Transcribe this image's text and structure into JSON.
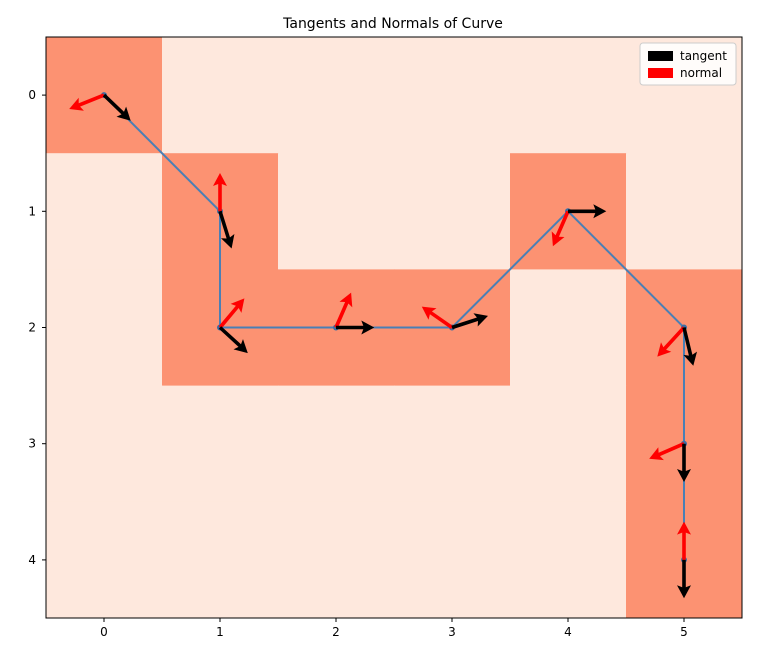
{
  "chart_data": {
    "type": "heatmap",
    "title": "Tangents and Normals of Curve",
    "xlabel": "",
    "ylabel": "",
    "x_ticks": [
      "0",
      "1",
      "2",
      "3",
      "4",
      "5"
    ],
    "y_ticks": [
      "0",
      "1",
      "2",
      "3",
      "4"
    ],
    "xlim": [
      -0.5,
      5.5
    ],
    "ylim": [
      4.5,
      -0.5
    ],
    "grid": false,
    "colors": {
      "on": "#fc9272",
      "off": "#fee8dd",
      "curve": "#4a7fb5",
      "point": "#3a6ea5",
      "tangent": "#000000",
      "normal": "#ff0000"
    },
    "grid_values": [
      [
        1,
        0,
        0,
        0,
        0,
        0
      ],
      [
        0,
        1,
        0,
        0,
        1,
        0
      ],
      [
        0,
        1,
        1,
        1,
        0,
        1
      ],
      [
        0,
        0,
        0,
        0,
        0,
        1
      ],
      [
        0,
        0,
        0,
        0,
        0,
        1
      ]
    ],
    "curve": [
      {
        "x": 0,
        "y": 0
      },
      {
        "x": 1,
        "y": 1
      },
      {
        "x": 1,
        "y": 2
      },
      {
        "x": 2,
        "y": 2
      },
      {
        "x": 3,
        "y": 2
      },
      {
        "x": 4,
        "y": 1
      },
      {
        "x": 5,
        "y": 2
      },
      {
        "x": 5,
        "y": 3
      },
      {
        "x": 5,
        "y": 4
      }
    ],
    "tangents": [
      {
        "x": 0,
        "y": 0,
        "dx": 0.23,
        "dy": 0.22
      },
      {
        "x": 1,
        "y": 1,
        "dx": 0.1,
        "dy": 0.32
      },
      {
        "x": 1,
        "y": 2,
        "dx": 0.24,
        "dy": 0.22
      },
      {
        "x": 2,
        "y": 2,
        "dx": 0.33,
        "dy": 0.0
      },
      {
        "x": 3,
        "y": 2,
        "dx": 0.31,
        "dy": -0.1
      },
      {
        "x": 4,
        "y": 1,
        "dx": 0.33,
        "dy": 0.0
      },
      {
        "x": 5,
        "y": 2,
        "dx": 0.08,
        "dy": 0.33
      },
      {
        "x": 5,
        "y": 3,
        "dx": 0.0,
        "dy": 0.33
      },
      {
        "x": 5,
        "y": 4,
        "dx": 0.0,
        "dy": 0.33
      }
    ],
    "normals": [
      {
        "x": 0,
        "y": 0,
        "dx": -0.3,
        "dy": 0.12
      },
      {
        "x": 1,
        "y": 1,
        "dx": 0.0,
        "dy": -0.33
      },
      {
        "x": 1,
        "y": 2,
        "dx": 0.21,
        "dy": -0.25
      },
      {
        "x": 2,
        "y": 2,
        "dx": 0.13,
        "dy": -0.3
      },
      {
        "x": 3,
        "y": 2,
        "dx": -0.26,
        "dy": -0.18
      },
      {
        "x": 4,
        "y": 1,
        "dx": -0.13,
        "dy": 0.3
      },
      {
        "x": 5,
        "y": 2,
        "dx": -0.23,
        "dy": 0.25
      },
      {
        "x": 5,
        "y": 3,
        "dx": -0.3,
        "dy": 0.13
      },
      {
        "x": 5,
        "y": 4,
        "dx": 0.0,
        "dy": -0.33
      }
    ],
    "legend": {
      "placement": "top-right",
      "entries": [
        {
          "label": "tangent",
          "color": "#000000"
        },
        {
          "label": "normal",
          "color": "#ff0000"
        }
      ]
    }
  }
}
